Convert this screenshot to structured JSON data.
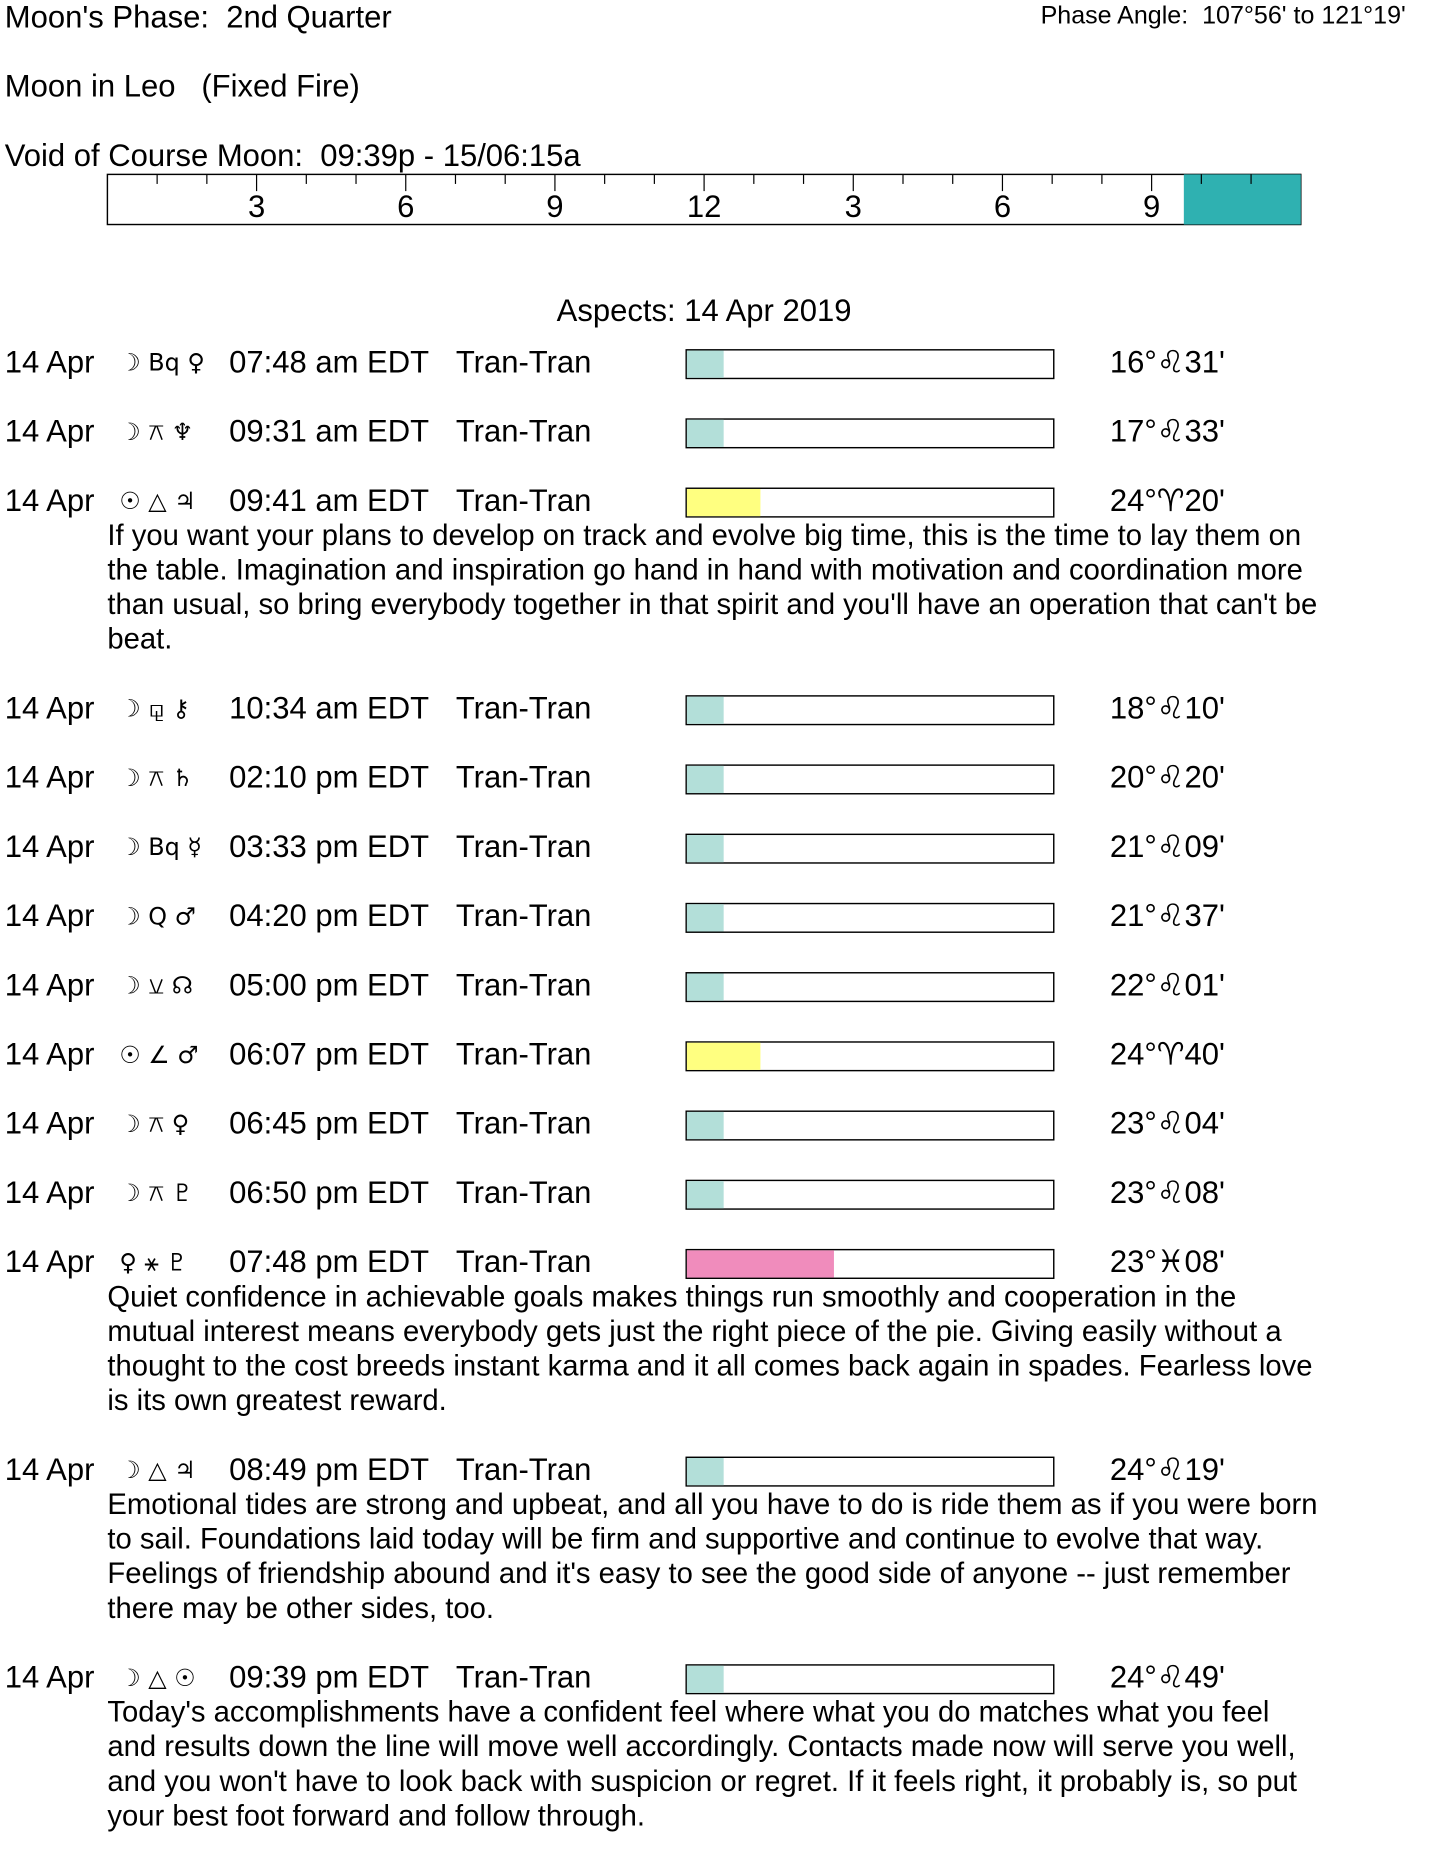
{
  "header": {
    "phase": "Moon's Phase:  2nd Quarter",
    "phase_angle": "Phase Angle:  107°56' to 121°19'",
    "moon_sign": "Moon in Leo   (Fixed Fire)",
    "void": "Void of Course Moon:  09:39p - 15/06:15a"
  },
  "timeline": {
    "labels": [
      "3",
      "6",
      "9",
      "12",
      "3",
      "6",
      "9"
    ]
  },
  "aspects": {
    "title": "Aspects: 14 Apr 2019",
    "rows": [
      {
        "date": "14 Apr",
        "symbols": "☽ Bq ♀",
        "time": "07:48 am EDT",
        "type": "Tran-Tran",
        "position": "16°♌31'",
        "bar_fill": 0.1,
        "bar_color": "#b3dfd9"
      },
      {
        "date": "14 Apr",
        "symbols": "☽ ⚻ ♆",
        "time": "09:31 am EDT",
        "type": "Tran-Tran",
        "position": "17°♌33'",
        "bar_fill": 0.1,
        "bar_color": "#b3dfd9"
      },
      {
        "date": "14 Apr",
        "symbols": "☉ △ ♃",
        "time": "09:41 am EDT",
        "type": "Tran-Tran",
        "position": "24°♈20'",
        "bar_fill": 0.2,
        "bar_color": "#ffff80",
        "description": [
          "If you want your plans to develop on track and evolve big time, this is the time to lay them on",
          "the table. Imagination and inspiration go hand in hand with motivation and coordination more",
          "than usual, so bring everybody together in that spirit and you'll have an operation that can't be",
          "beat."
        ]
      },
      {
        "date": "14 Apr",
        "symbols": "☽ ⚼ ⚷",
        "time": "10:34 am EDT",
        "type": "Tran-Tran",
        "position": "18°♌10'",
        "bar_fill": 0.1,
        "bar_color": "#b3dfd9"
      },
      {
        "date": "14 Apr",
        "symbols": "☽ ⚻ ♄",
        "time": "02:10 pm EDT",
        "type": "Tran-Tran",
        "position": "20°♌20'",
        "bar_fill": 0.1,
        "bar_color": "#b3dfd9"
      },
      {
        "date": "14 Apr",
        "symbols": "☽ Bq ☿",
        "time": "03:33 pm EDT",
        "type": "Tran-Tran",
        "position": "21°♌09'",
        "bar_fill": 0.1,
        "bar_color": "#b3dfd9"
      },
      {
        "date": "14 Apr",
        "symbols": "☽ Q ♂",
        "time": "04:20 pm EDT",
        "type": "Tran-Tran",
        "position": "21°♌37'",
        "bar_fill": 0.1,
        "bar_color": "#b3dfd9"
      },
      {
        "date": "14 Apr",
        "symbols": "☽ ⚺ ☊",
        "time": "05:00 pm EDT",
        "type": "Tran-Tran",
        "position": "22°♌01'",
        "bar_fill": 0.1,
        "bar_color": "#b3dfd9"
      },
      {
        "date": "14 Apr",
        "symbols": "☉ ∠ ♂",
        "time": "06:07 pm EDT",
        "type": "Tran-Tran",
        "position": "24°♈40'",
        "bar_fill": 0.2,
        "bar_color": "#ffff80"
      },
      {
        "date": "14 Apr",
        "symbols": "☽ ⚻ ♀",
        "time": "06:45 pm EDT",
        "type": "Tran-Tran",
        "position": "23°♌04'",
        "bar_fill": 0.1,
        "bar_color": "#b3dfd9"
      },
      {
        "date": "14 Apr",
        "symbols": "☽ ⚻ ♇",
        "time": "06:50 pm EDT",
        "type": "Tran-Tran",
        "position": "23°♌08'",
        "bar_fill": 0.1,
        "bar_color": "#b3dfd9"
      },
      {
        "date": "14 Apr",
        "symbols": "♀ ⚹ ♇",
        "time": "07:48 pm EDT",
        "type": "Tran-Tran",
        "position": "23°♓08'",
        "bar_fill": 0.4,
        "bar_color": "#f08cbc",
        "description": [
          "Quiet confidence in achievable goals makes things run smoothly and cooperation in the",
          "mutual interest means everybody gets just the right piece of the pie. Giving easily without a",
          "thought to the cost breeds instant karma and it all comes back again in spades. Fearless love",
          "is its own greatest reward."
        ]
      },
      {
        "date": "14 Apr",
        "symbols": "☽ △ ♃",
        "time": "08:49 pm EDT",
        "type": "Tran-Tran",
        "position": "24°♌19'",
        "bar_fill": 0.1,
        "bar_color": "#b3dfd9",
        "description": [
          "Emotional tides are strong and upbeat, and all you have to do is ride them as if you were born",
          "to sail. Foundations laid today will be firm and supportive and continue to evolve that way.",
          "Feelings of friendship abound and it's easy to see the good side of anyone -- just remember",
          "there may be other sides, too."
        ]
      },
      {
        "date": "14 Apr",
        "symbols": "☽ △ ☉",
        "time": "09:39 pm EDT",
        "type": "Tran-Tran",
        "position": "24°♌49'",
        "bar_fill": 0.1,
        "bar_color": "#b3dfd9",
        "description": [
          "Today's accomplishments have a confident feel where what you do matches what you feel",
          "and results down the line will move well accordingly. Contacts made now will serve you well,",
          "and you won't have to look back with suspicion or regret. If it feels right, it probably is, so put",
          "your best foot forward and follow through."
        ]
      }
    ]
  }
}
